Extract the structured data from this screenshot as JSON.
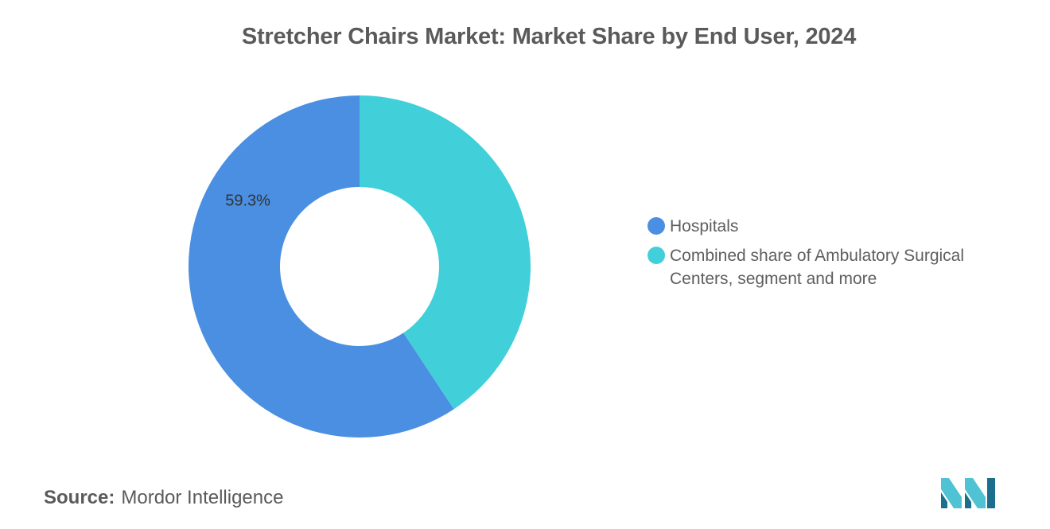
{
  "title": "Stretcher Chairs Market: Market Share by End User, 2024",
  "source": {
    "label": "Source:",
    "value": "Mordor Intelligence"
  },
  "logo": {
    "icon": "mordor-intelligence-logo-icon",
    "color_dark": "#1b6e8c",
    "color_light": "#4fc3d3"
  },
  "chart_data": {
    "type": "pie",
    "donut": true,
    "series": [
      {
        "name": "Hospitals",
        "value": 59.3,
        "color": "#4a8fe2",
        "label": "59.3%"
      },
      {
        "name": "Combined share of Ambulatory Surgical Centers, segment and more",
        "value": 40.7,
        "color": "#41d0da",
        "label": ""
      }
    ],
    "legend_position": "right"
  }
}
